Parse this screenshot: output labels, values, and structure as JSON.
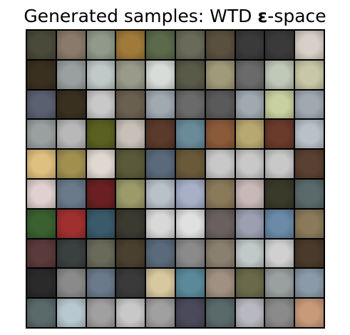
{
  "figure": {
    "title_main": "Generated samples: WTD ",
    "title_epsilon": "ε",
    "title_suffix": "-space"
  },
  "grid": {
    "rows": 10,
    "cols": 10,
    "cells": [
      [
        "#4a4a3a",
        "#8a7a6a",
        "#8f9a8a",
        "#a07a3a",
        "#5a6a4a",
        "#6a6a5a",
        "#5a5040",
        "#3a3a3a",
        "#3a3a3a",
        "#d8d0c8"
      ],
      [
        "#3a3020",
        "#9aa0a0",
        "#c0c8c8",
        "#9a9a8a",
        "#d8dcd8",
        "#5a5a48",
        "#a09a7a",
        "#6a6a6a",
        "#c0c8b8",
        "#c8c8a8"
      ],
      [
        "#5a6070",
        "#3a3020",
        "#c8c8c8",
        "#6a6050",
        "#a0a8b0",
        "#6a6a6a",
        "#5a5a5a",
        "#a0a8b0",
        "#c8d0a0",
        "#a0a8b0"
      ],
      [
        "#9aa0a0",
        "#b8b8b8",
        "#5a6020",
        "#c8c0b8",
        "#5a3a2a",
        "#6a8a9a",
        "#8a5a3a",
        "#b8a870",
        "#6a3a2a",
        "#b8c0c8"
      ],
      [
        "#e0c080",
        "#a09050",
        "#e0d8d0",
        "#5a5a3a",
        "#5a6a7a",
        "#6a5a3a",
        "#c8c8c8",
        "#c8c8c8",
        "#c8c8c8",
        "#5a4030"
      ],
      [
        "#e0d0d0",
        "#6a7a8a",
        "#6a2020",
        "#9a9a6a",
        "#b8c0c8",
        "#a8b0c8",
        "#8a7a5a",
        "#c8b8b8",
        "#3a3a2a",
        "#5a6a6a"
      ],
      [
        "#3a6030",
        "#a03030",
        "#3a5a6a",
        "#3a3a30",
        "#d8d8d8",
        "#e0e0e0",
        "#6a6060",
        "#9aa0b0",
        "#6a8aa8",
        "#8a7a5a"
      ],
      [
        "#5a3a3a",
        "#3a4040",
        "#6a6a5a",
        "#4a4030",
        "#5a6a7a",
        "#8a8a8a",
        "#8a8070",
        "#c0c8c8",
        "#d0d0d0",
        "#4a3a2a"
      ],
      [
        "#2a2a2a",
        "#8a8a8a",
        "#6a7a8a",
        "#3a3a3a",
        "#d8c8a0",
        "#5a8a9a",
        "#a09080",
        "#6a6a4a",
        "#9aa0a0",
        "#8a9aa8"
      ],
      [
        "#5a6a6a",
        "#b8c8d0",
        "#a0a0a0",
        "#c8c8c8",
        "#a0a0a0",
        "#4a4a5a",
        "#5a6a6a",
        "#b8b8c0",
        "#8a8a8a",
        "#c89a7a"
      ]
    ]
  }
}
